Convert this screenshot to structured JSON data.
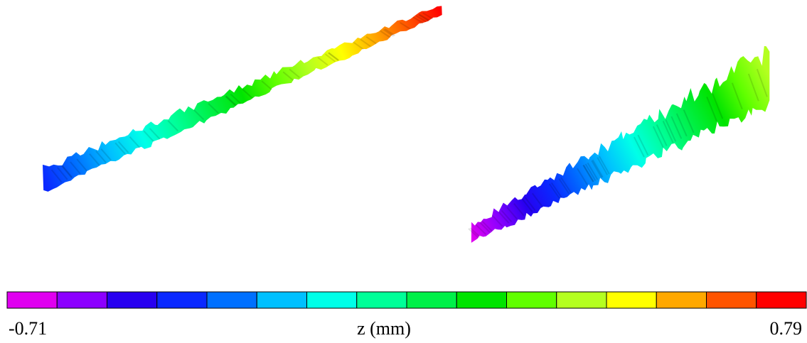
{
  "chart_data": {
    "type": "surface",
    "colorbar": {
      "label": "z (mm)",
      "clim": [
        -0.71,
        0.79
      ],
      "cticks": [
        -0.71,
        0.79
      ],
      "colors": [
        "#e000f0",
        "#8c00ff",
        "#2800f0",
        "#0a28ff",
        "#0070ff",
        "#00c0ff",
        "#00ffe8",
        "#00ff98",
        "#00f048",
        "#00e400",
        "#60ff00",
        "#b4ff20",
        "#ffff00",
        "#ffa800",
        "#ff5400",
        "#ff0000"
      ]
    }
  }
}
